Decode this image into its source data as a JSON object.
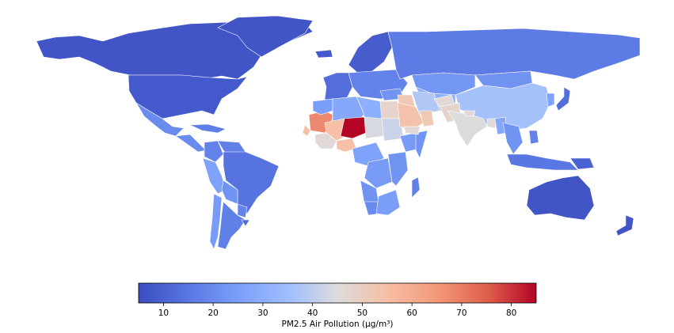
{
  "map": {
    "type": "choropleth",
    "variable": "PM2.5 Air Pollution",
    "colormap": "coolwarm",
    "range": [
      5,
      85
    ],
    "regions": [
      {
        "name": "Canada",
        "value": 7
      },
      {
        "name": "Greenland",
        "value": 7
      },
      {
        "name": "United States",
        "value": 8
      },
      {
        "name": "Mexico",
        "value": 20
      },
      {
        "name": "Central America",
        "value": 20
      },
      {
        "name": "Caribbean",
        "value": 17
      },
      {
        "name": "Colombia",
        "value": 18
      },
      {
        "name": "Venezuela",
        "value": 17
      },
      {
        "name": "Peru",
        "value": 26
      },
      {
        "name": "Brazil",
        "value": 14
      },
      {
        "name": "Bolivia",
        "value": 22
      },
      {
        "name": "Paraguay",
        "value": 18
      },
      {
        "name": "Argentina",
        "value": 17
      },
      {
        "name": "Chile",
        "value": 24
      },
      {
        "name": "Uruguay",
        "value": 12
      },
      {
        "name": "Iceland",
        "value": 8
      },
      {
        "name": "Scandinavia",
        "value": 9
      },
      {
        "name": "Western Europe",
        "value": 13
      },
      {
        "name": "Eastern Europe",
        "value": 18
      },
      {
        "name": "Russia",
        "value": 16
      },
      {
        "name": "Kazakhstan",
        "value": 23
      },
      {
        "name": "Mongolia",
        "value": 22
      },
      {
        "name": "Central Asia",
        "value": 30
      },
      {
        "name": "China",
        "value": 36
      },
      {
        "name": "Korea",
        "value": 26
      },
      {
        "name": "Japan",
        "value": 13
      },
      {
        "name": "Mauritania",
        "value": 68
      },
      {
        "name": "Western Sahara",
        "value": 55
      },
      {
        "name": "Morocco",
        "value": 25
      },
      {
        "name": "Algeria",
        "value": 28
      },
      {
        "name": "Libya",
        "value": 30
      },
      {
        "name": "Egypt",
        "value": 48
      },
      {
        "name": "Mali",
        "value": 55
      },
      {
        "name": "Niger",
        "value": 85
      },
      {
        "name": "Chad",
        "value": 44
      },
      {
        "name": "Sudan",
        "value": 42
      },
      {
        "name": "West Africa coast",
        "value": 46
      },
      {
        "name": "Nigeria",
        "value": 55
      },
      {
        "name": "Ethiopia",
        "value": 24
      },
      {
        "name": "Somalia",
        "value": 22
      },
      {
        "name": "Central Africa",
        "value": 26
      },
      {
        "name": "DR Congo",
        "value": 24
      },
      {
        "name": "Angola",
        "value": 22
      },
      {
        "name": "East Africa",
        "value": 22
      },
      {
        "name": "Namibia",
        "value": 20
      },
      {
        "name": "Southern Africa",
        "value": 25
      },
      {
        "name": "Madagascar",
        "value": 17
      },
      {
        "name": "Turkey",
        "value": 22
      },
      {
        "name": "Iraq",
        "value": 52
      },
      {
        "name": "Iran",
        "value": 38
      },
      {
        "name": "Saudi Arabia",
        "value": 54
      },
      {
        "name": "Arabian Gulf",
        "value": 52
      },
      {
        "name": "Yemen",
        "value": 46
      },
      {
        "name": "Afghanistan",
        "value": 46
      },
      {
        "name": "Pakistan",
        "value": 48
      },
      {
        "name": "India",
        "value": 45
      },
      {
        "name": "Nepal",
        "value": 46
      },
      {
        "name": "Bangladesh",
        "value": 46
      },
      {
        "name": "Myanmar",
        "value": 28
      },
      {
        "name": "Southeast Asia",
        "value": 22
      },
      {
        "name": "Philippines",
        "value": 18
      },
      {
        "name": "Indonesia",
        "value": 15
      },
      {
        "name": "Papua New Guinea",
        "value": 10
      },
      {
        "name": "Australia",
        "value": 7
      },
      {
        "name": "New Zealand",
        "value": 7
      }
    ]
  },
  "colorbar": {
    "label": "PM2.5 Air Pollution (μg/m³)",
    "min": 5,
    "max": 85,
    "ticks": [
      10,
      20,
      30,
      40,
      50,
      60,
      70,
      80
    ]
  }
}
